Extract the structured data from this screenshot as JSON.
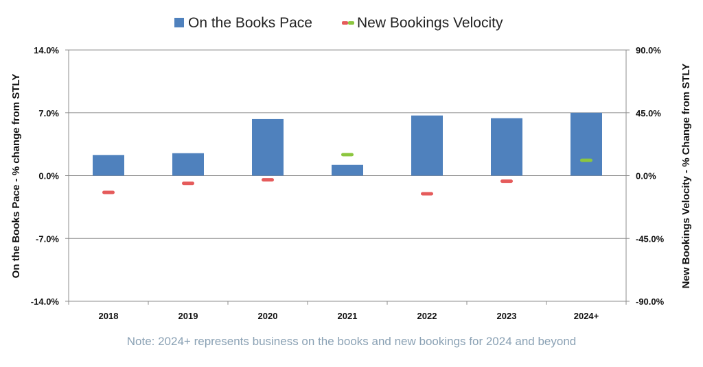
{
  "chart_data": {
    "type": "bar",
    "categories": [
      "2018",
      "2019",
      "2020",
      "2021",
      "2022",
      "2023",
      "2024+"
    ],
    "series": [
      {
        "name": "On the Books Pace",
        "kind": "bar",
        "axis": "left",
        "color": "#4f81bd",
        "values": [
          2.3,
          2.5,
          6.3,
          1.2,
          6.7,
          6.4,
          7.0
        ]
      },
      {
        "name": "New Bookings Velocity",
        "kind": "marker",
        "axis": "right",
        "color_negative": "#e55b5b",
        "color_positive": "#8cc63f",
        "values": [
          -12.0,
          -5.5,
          -3.0,
          15.0,
          -13.0,
          -4.0,
          11.0
        ]
      }
    ],
    "y_left": {
      "label": "On the Books Pace - % change from STLY",
      "ylim": [
        -14,
        14
      ],
      "ticks": [
        14,
        7,
        0,
        -7,
        -14
      ],
      "tick_labels": [
        "14.0%",
        "7.0%",
        "0.0%",
        "-7.0%",
        "-14.0%"
      ]
    },
    "y_right": {
      "label": "New Bookings Velocity - % Change from STLY",
      "ylim": [
        -90,
        90
      ],
      "ticks": [
        90,
        45,
        0,
        -45,
        -90
      ],
      "tick_labels": [
        "90.0%",
        "45.0%",
        "0.0%",
        "-45.0%",
        "-90.0%"
      ]
    },
    "grid": true,
    "legend_position": "top-center",
    "note": "Note: 2024+ represents business on the books and new bookings for 2024 and beyond"
  }
}
